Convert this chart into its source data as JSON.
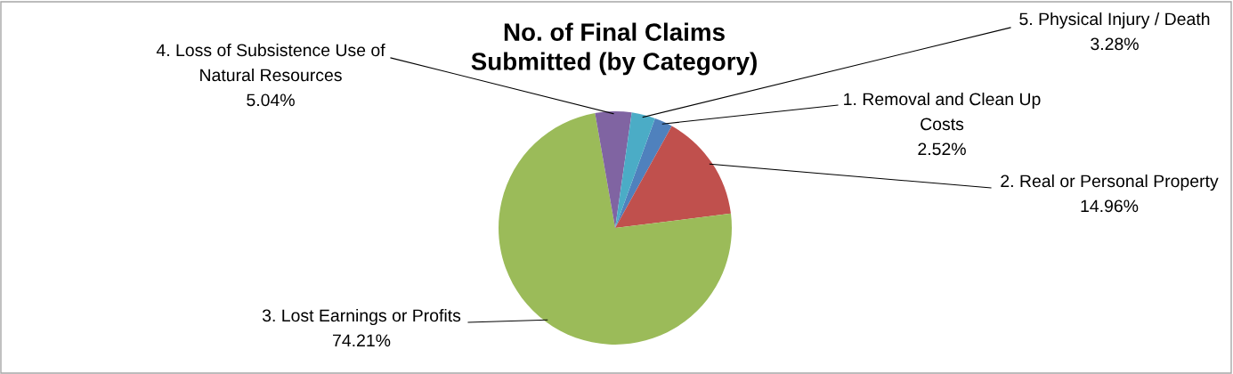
{
  "chart_data": {
    "type": "pie",
    "title": "No. of Final Claims\nSubmitted (by Category)",
    "categories": [
      "1. Removal and Clean Up Costs",
      "2. Real or Personal Property",
      "3. Lost Earnings or Profits",
      "4. Loss of Subsistence Use of Natural Resources",
      "5. Physical Injury / Death"
    ],
    "values": [
      2.52,
      14.96,
      74.21,
      5.04,
      3.28
    ],
    "colors": [
      "#4f81bd",
      "#c0504d",
      "#9bbb59",
      "#8064a2",
      "#4bacc6"
    ],
    "value_labels": [
      "2.52%",
      "14.96%",
      "74.21%",
      "5.04%",
      "3.28%"
    ],
    "legend": false
  }
}
